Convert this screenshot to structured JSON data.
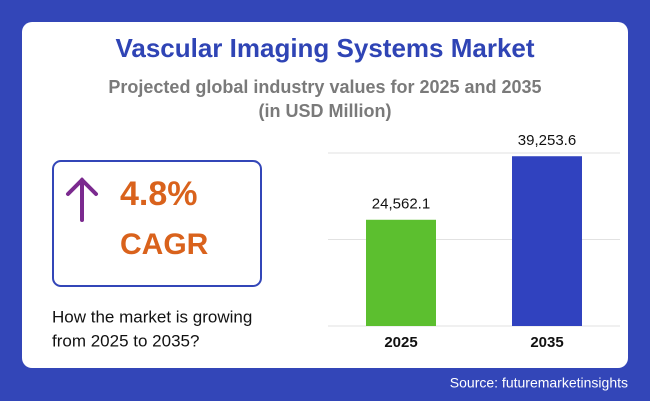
{
  "header": {
    "title": "Vascular Imaging Systems Market",
    "subtitle": [
      "Projected global industry values for 2025 and 2035",
      "(in USD Million)"
    ]
  },
  "cagr": {
    "value": "4.8%",
    "label": "CAGR"
  },
  "question": [
    "How the market is growing",
    "from 2025 to 2035?"
  ],
  "source": "Source: futuremarketinsights",
  "chart_data": {
    "type": "bar",
    "categories": [
      "2025",
      "2035"
    ],
    "values": [
      24562.1,
      39253.6
    ],
    "value_labels": [
      "24,562.1",
      "39,253.6"
    ],
    "colors": [
      "#5cbf2f",
      "#3042bf"
    ],
    "ylim": [
      0,
      40000
    ],
    "yticks": [
      0,
      20000,
      40000
    ],
    "grid": true,
    "tick_labels": false
  }
}
